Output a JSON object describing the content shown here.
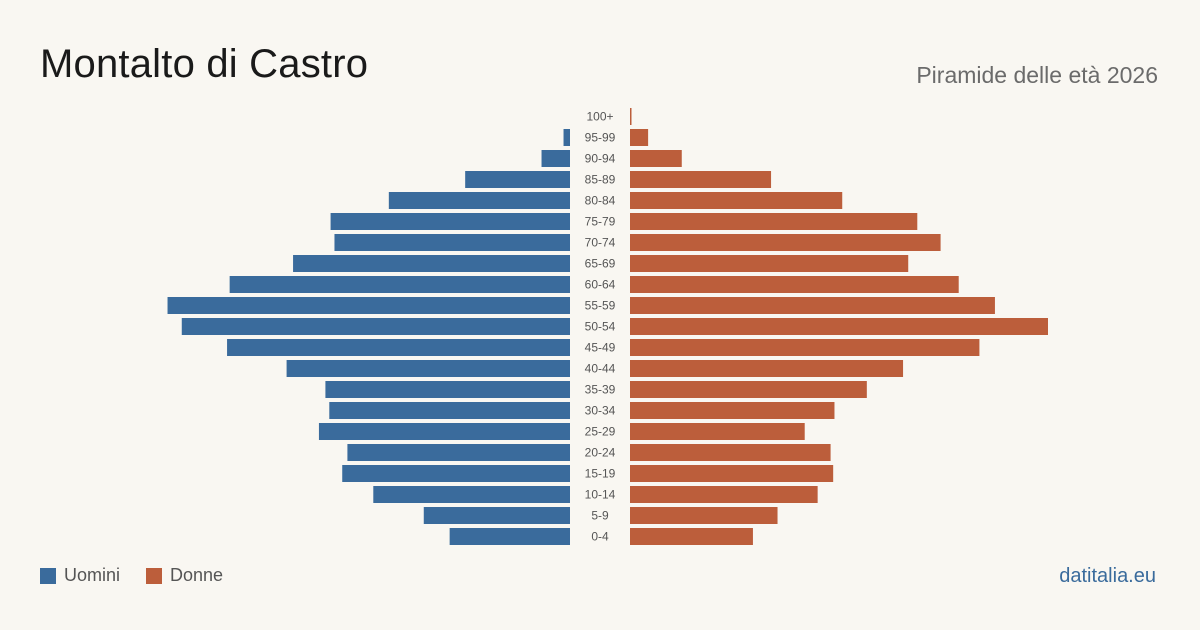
{
  "header": {
    "title": "Montalto di Castro",
    "subtitle": "Piramide delle età 2026"
  },
  "legend": {
    "men_label": "Uomini",
    "women_label": "Donne"
  },
  "source": "datitalia.eu",
  "colors": {
    "men": "#3a6b9c",
    "women": "#bc5e3b",
    "background": "#f9f7f2"
  },
  "chart_data": {
    "type": "bar",
    "orientation": "horizontal",
    "layout": "population-pyramid",
    "categories": [
      "100+",
      "95-99",
      "90-94",
      "85-89",
      "80-84",
      "75-79",
      "70-74",
      "65-69",
      "60-64",
      "55-59",
      "50-54",
      "45-49",
      "40-44",
      "35-39",
      "30-34",
      "25-29",
      "20-24",
      "15-19",
      "10-14",
      "5-9",
      "0-4"
    ],
    "series": [
      {
        "name": "Uomini",
        "values": [
          0,
          5,
          22,
          81,
          140,
          185,
          182,
          214,
          263,
          311,
          300,
          265,
          219,
          189,
          186,
          194,
          172,
          176,
          152,
          113,
          93
        ]
      },
      {
        "name": "Donne",
        "values": [
          1,
          14,
          40,
          109,
          164,
          222,
          240,
          215,
          254,
          282,
          323,
          270,
          211,
          183,
          158,
          135,
          155,
          157,
          145,
          114,
          95
        ]
      }
    ],
    "xlim": [
      0,
      340
    ],
    "grid": false,
    "legend_position": "bottom-left"
  }
}
